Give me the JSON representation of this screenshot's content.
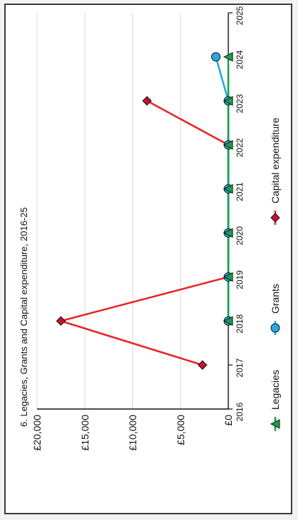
{
  "chart_data": {
    "type": "line",
    "title": "6. Legacies, Grants and Capital expenditure, 2016-25",
    "x": [
      2017,
      2018,
      2019,
      2020,
      2021,
      2022,
      2023,
      2024
    ],
    "xlim": [
      2016,
      2025
    ],
    "x_ticks": [
      "2016",
      "2017",
      "2018",
      "2019",
      "2020",
      "2021",
      "2022",
      "2023",
      "2024",
      "2025"
    ],
    "ylim": [
      0,
      20000
    ],
    "y_ticks": [
      "£0",
      "£5,000",
      "£10,000",
      "£15,000",
      "£20,000"
    ],
    "grid": true,
    "legend_position": "bottom",
    "series": [
      {
        "name": "Capital expenditure",
        "color": "#e8262a",
        "marker": "diamond",
        "marker_fill": "#c8102e",
        "values": [
          2700,
          17500,
          0,
          0,
          0,
          0,
          8500,
          null
        ]
      },
      {
        "name": "Grants",
        "color": "#29a9e0",
        "marker": "circle",
        "marker_fill": "#29a9e0",
        "values": [
          null,
          0,
          0,
          0,
          0,
          0,
          0,
          1300
        ]
      },
      {
        "name": "Legacies",
        "color": "#1aa14a",
        "marker": "triangle",
        "marker_fill": "#1aa14a",
        "values": [
          null,
          0,
          0,
          0,
          0,
          0,
          0,
          0
        ]
      }
    ]
  }
}
